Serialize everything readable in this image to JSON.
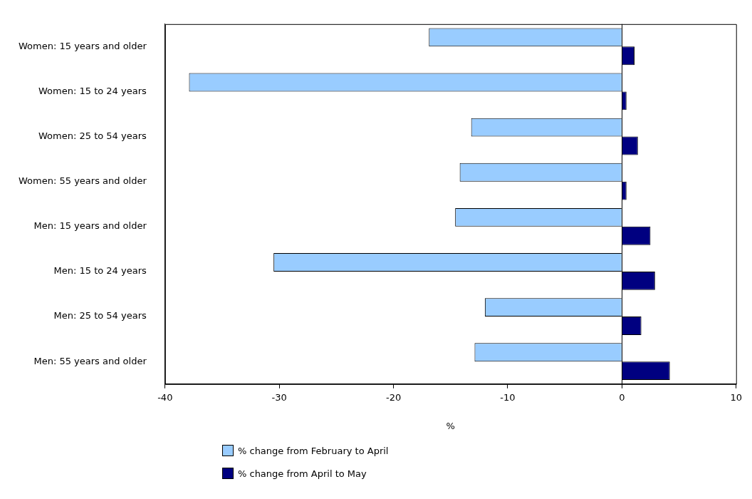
{
  "chart_data": {
    "type": "bar",
    "orientation": "horizontal",
    "xlabel": "%",
    "categories": [
      "Women: 15 years and older",
      "Women: 15 to 24 years",
      "Women: 25 to 54 years",
      "Women: 55 years and older",
      "Men: 15 years and older",
      "Men: 15 to 24 years",
      "Men: 25 to 54 years",
      "Men: 55 years and older"
    ],
    "series": [
      {
        "name": "% change from February to April",
        "color": "#99ccff",
        "values": [
          -16.9,
          -37.9,
          -13.2,
          -14.2,
          -14.6,
          -30.5,
          -12.0,
          -12.9
        ]
      },
      {
        "name": "% change from April to May",
        "color": "#000080",
        "values": [
          1.1,
          0.4,
          1.4,
          0.4,
          2.5,
          2.9,
          1.7,
          4.2
        ]
      }
    ],
    "xlim": [
      -40,
      10
    ],
    "xticks": [
      -40,
      -30,
      -20,
      -10,
      0,
      10
    ],
    "ref_lines": [
      {
        "axis": "x",
        "value": 0,
        "color": "#000000"
      }
    ],
    "grid": false,
    "legend": "bottom"
  }
}
